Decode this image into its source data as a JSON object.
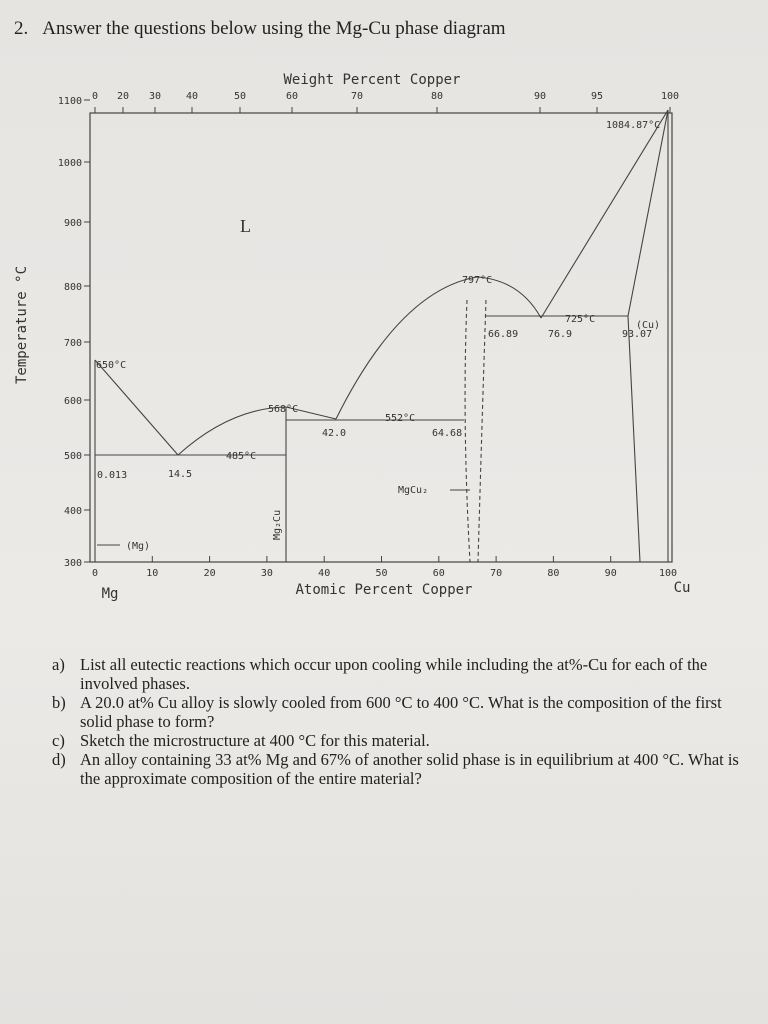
{
  "question": {
    "number": "2.",
    "text": "Answer the questions below using the Mg-Cu phase diagram"
  },
  "diagram": {
    "top_axis_title": "Weight Percent Copper",
    "top_ticks": [
      "0",
      "20",
      "30",
      "40",
      "50",
      "60",
      "70",
      "80",
      "90",
      "95",
      "100"
    ],
    "left_axis_title": "Temperature °C",
    "left_ticks": [
      "1100",
      "1000",
      "900",
      "800",
      "700",
      "600",
      "500",
      "400",
      "300"
    ],
    "bottom_axis_title": "Atomic Percent Copper",
    "bottom_ticks": [
      "0",
      "10",
      "20",
      "30",
      "40",
      "50",
      "60",
      "70",
      "80",
      "90",
      "100"
    ],
    "left_element": "Mg",
    "right_element": "Cu",
    "labels": [
      "L",
      "1084.87°C",
      "797°C",
      "725°C",
      "(Cu)",
      "66.89",
      "76.9",
      "93.07",
      "650°C",
      "568°C",
      "552°C",
      "42.0",
      "64.68",
      "485°C",
      "0.013",
      "14.5",
      "MgCu₂",
      "Mg₂Cu",
      "(Mg)"
    ]
  },
  "parts": [
    {
      "letter": "a)",
      "text": "List all eutectic reactions which occur upon cooling while including the at%-Cu for each of the involved phases."
    },
    {
      "letter": "b)",
      "text": "A 20.0 at% Cu alloy is slowly cooled from 600 °C to 400 °C. What is the composition of the first solid phase to form?"
    },
    {
      "letter": "c)",
      "text": "Sketch the microstructure at 400 °C for this material."
    },
    {
      "letter": "d)",
      "text": "An alloy containing 33 at% Mg and 67% of another solid phase is in equilibrium at 400 °C. What is the approximate composition of the entire material?"
    }
  ]
}
